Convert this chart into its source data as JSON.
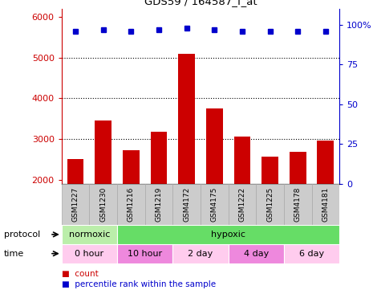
{
  "title": "GDS59 / 164587_f_at",
  "samples": [
    "GSM1227",
    "GSM1230",
    "GSM1216",
    "GSM1219",
    "GSM4172",
    "GSM4175",
    "GSM1222",
    "GSM1225",
    "GSM4178",
    "GSM4181"
  ],
  "bar_values": [
    2500,
    3450,
    2720,
    3170,
    5100,
    3750,
    3060,
    2560,
    2680,
    2960
  ],
  "percentile_values": [
    96,
    97,
    96,
    97,
    98,
    97,
    96,
    96,
    96,
    96
  ],
  "ylim_left": [
    1900,
    6200
  ],
  "ylim_right": [
    0,
    110
  ],
  "yticks_left": [
    2000,
    3000,
    4000,
    5000,
    6000
  ],
  "yticks_right": [
    0,
    25,
    50,
    75,
    100
  ],
  "bar_color": "#cc0000",
  "dot_color": "#0000cc",
  "dot_size": 5,
  "dotted_yticks": [
    3000,
    4000,
    5000
  ],
  "protocol_row": [
    {
      "label": "normoxic",
      "start": 0,
      "end": 2,
      "color": "#bbeeaa"
    },
    {
      "label": "hypoxic",
      "start": 2,
      "end": 10,
      "color": "#66dd66"
    }
  ],
  "time_row": [
    {
      "label": "0 hour",
      "start": 0,
      "end": 2,
      "color": "#ffccee"
    },
    {
      "label": "10 hour",
      "start": 2,
      "end": 4,
      "color": "#ee88dd"
    },
    {
      "label": "2 day",
      "start": 4,
      "end": 6,
      "color": "#ffccee"
    },
    {
      "label": "4 day",
      "start": 6,
      "end": 8,
      "color": "#ee88dd"
    },
    {
      "label": "6 day",
      "start": 8,
      "end": 10,
      "color": "#ffccee"
    }
  ],
  "left_ytick_color": "#cc0000",
  "right_ytick_color": "#0000cc",
  "protocol_label": "protocol",
  "time_label": "time",
  "legend_count_label": "count",
  "legend_pct_label": "percentile rank within the sample",
  "sample_cell_color": "#cccccc",
  "sample_cell_edge": "#aaaaaa"
}
